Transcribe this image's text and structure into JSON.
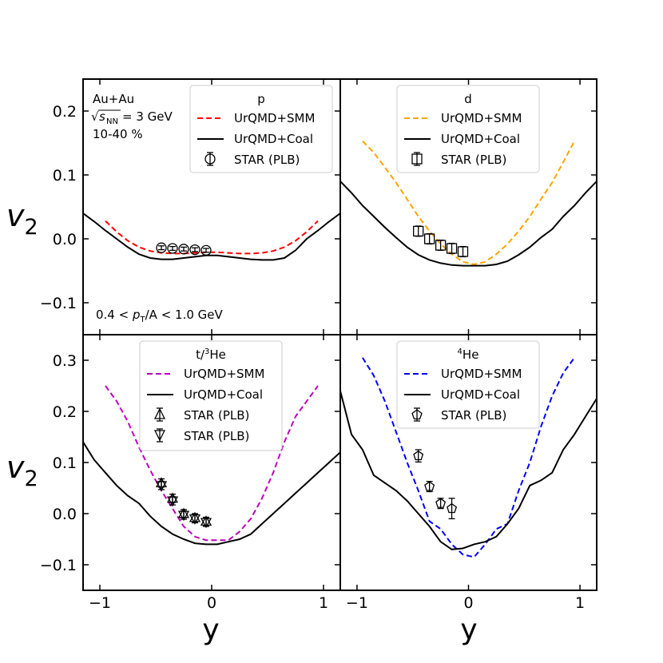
{
  "figure": {
    "x_axis_title": "y",
    "y_axis_title": "v",
    "y_axis_subscript": "2",
    "system_label": "Au+Au",
    "energy_label": "= 3 GeV",
    "sqrt_symbol": "√",
    "s_symbol": "s",
    "nn_subscript": "NN",
    "centrality_label": "10-40 %",
    "pt_cut": {
      "prefix": "0.4 < ",
      "p": "p",
      "t": "T",
      "suffix": "/A < 1.0 GeV"
    }
  },
  "colors": {
    "p": "#ff0000",
    "d": "#ffa500",
    "t": "#bf00bf",
    "he4": "#0000ff",
    "coal": "#000000"
  },
  "legend_labels": {
    "smm": "UrQMD+SMM",
    "coal": "UrQMD+Coal",
    "star": "STAR (PLB)"
  },
  "chart_data": [
    {
      "id": "p",
      "type": "line",
      "title": "p",
      "xlabel": "",
      "ylabel": "v2",
      "xlim": [
        -1.15,
        1.15
      ],
      "ylim": [
        -0.15,
        0.25
      ],
      "yticks": [
        -0.1,
        0.0,
        0.1,
        0.2
      ],
      "ytick_labels": [
        "−0.1",
        "0.0",
        "0.1",
        "0.2"
      ],
      "series": [
        {
          "name": "UrQMD+SMM",
          "style": "dashed",
          "color": "#ff0000",
          "x": [
            -0.95,
            -0.85,
            -0.75,
            -0.65,
            -0.55,
            -0.45,
            -0.35,
            -0.25,
            -0.15,
            -0.05,
            0.05,
            0.15,
            0.25,
            0.35,
            0.45,
            0.55,
            0.65,
            0.75,
            0.85,
            0.95
          ],
          "y": [
            0.028,
            0.011,
            -0.003,
            -0.013,
            -0.019,
            -0.022,
            -0.023,
            -0.023,
            -0.022,
            -0.021,
            -0.021,
            -0.022,
            -0.023,
            -0.023,
            -0.022,
            -0.019,
            -0.013,
            -0.003,
            0.011,
            0.028
          ]
        },
        {
          "name": "UrQMD+Coal",
          "style": "solid",
          "color": "#000000",
          "x": [
            -1.15,
            -1.05,
            -0.95,
            -0.85,
            -0.75,
            -0.65,
            -0.55,
            -0.45,
            -0.35,
            -0.25,
            -0.15,
            -0.05,
            0.05,
            0.15,
            0.25,
            0.35,
            0.45,
            0.55,
            0.65,
            0.75,
            0.85,
            0.95,
            1.05,
            1.15
          ],
          "y": [
            0.04,
            0.027,
            0.013,
            0.0,
            -0.013,
            -0.024,
            -0.03,
            -0.032,
            -0.032,
            -0.03,
            -0.028,
            -0.026,
            -0.026,
            -0.028,
            -0.03,
            -0.032,
            -0.033,
            -0.033,
            -0.03,
            -0.018,
            0.0,
            0.013,
            0.027,
            0.04
          ]
        },
        {
          "name": "STAR (PLB)",
          "style": "marker",
          "marker": "circle",
          "x": [
            -0.45,
            -0.35,
            -0.25,
            -0.15,
            -0.05
          ],
          "y": [
            -0.014,
            -0.015,
            -0.016,
            -0.017,
            -0.018
          ],
          "err": [
            0.003,
            0.003,
            0.003,
            0.003,
            0.003
          ]
        }
      ]
    },
    {
      "id": "d",
      "type": "line",
      "title": "d",
      "xlabel": "",
      "ylabel": "",
      "xlim": [
        -1.15,
        1.15
      ],
      "ylim": [
        -0.15,
        0.25
      ],
      "series": [
        {
          "name": "UrQMD+SMM",
          "style": "dashed",
          "color": "#ffa500",
          "x": [
            -0.95,
            -0.85,
            -0.75,
            -0.65,
            -0.55,
            -0.45,
            -0.35,
            -0.25,
            -0.15,
            -0.05,
            0.05,
            0.15,
            0.25,
            0.35,
            0.45,
            0.55,
            0.65,
            0.75,
            0.85,
            0.95
          ],
          "y": [
            0.153,
            0.135,
            0.112,
            0.088,
            0.062,
            0.035,
            0.012,
            -0.008,
            -0.024,
            -0.036,
            -0.04,
            -0.036,
            -0.024,
            -0.008,
            0.012,
            0.035,
            0.062,
            0.088,
            0.12,
            0.153
          ]
        },
        {
          "name": "UrQMD+Coal",
          "style": "solid",
          "color": "#000000",
          "x": [
            -1.15,
            -1.05,
            -0.95,
            -0.85,
            -0.75,
            -0.65,
            -0.55,
            -0.45,
            -0.35,
            -0.25,
            -0.15,
            -0.05,
            0.05,
            0.15,
            0.25,
            0.35,
            0.45,
            0.55,
            0.65,
            0.75,
            0.85,
            0.95,
            1.05,
            1.15
          ],
          "y": [
            0.09,
            0.072,
            0.052,
            0.035,
            0.018,
            0.002,
            -0.013,
            -0.025,
            -0.033,
            -0.038,
            -0.041,
            -0.042,
            -0.042,
            -0.042,
            -0.04,
            -0.035,
            -0.025,
            -0.013,
            0.002,
            0.015,
            0.035,
            0.052,
            0.072,
            0.09
          ]
        },
        {
          "name": "STAR (PLB)",
          "style": "marker",
          "marker": "square",
          "x": [
            -0.45,
            -0.35,
            -0.25,
            -0.15,
            -0.05
          ],
          "y": [
            0.012,
            0.0,
            -0.01,
            -0.015,
            -0.02
          ],
          "err": [
            0.008,
            0.008,
            0.008,
            0.008,
            0.008
          ]
        }
      ]
    },
    {
      "id": "t",
      "type": "line",
      "title_prefix": "t/",
      "title_sup": "3",
      "title_suffix": "He",
      "xlabel": "y",
      "ylabel": "v2",
      "xlim": [
        -1.15,
        1.15
      ],
      "ylim": [
        -0.15,
        0.35
      ],
      "yticks": [
        -0.1,
        0.0,
        0.1,
        0.2,
        0.3
      ],
      "ytick_labels": [
        "−0.1",
        "0.0",
        "0.1",
        "0.2",
        "0.3"
      ],
      "xticks": [
        -1,
        0,
        1
      ],
      "xtick_labels": [
        "−1",
        "0",
        "1"
      ],
      "series": [
        {
          "name": "UrQMD+SMM",
          "style": "dashed",
          "color": "#bf00bf",
          "x": [
            -0.95,
            -0.85,
            -0.75,
            -0.65,
            -0.55,
            -0.45,
            -0.35,
            -0.25,
            -0.15,
            -0.05,
            0.05,
            0.15,
            0.25,
            0.35,
            0.45,
            0.55,
            0.65,
            0.75,
            0.85,
            0.95
          ],
          "y": [
            0.25,
            0.22,
            0.18,
            0.13,
            0.085,
            0.045,
            0.01,
            -0.025,
            -0.045,
            -0.052,
            -0.052,
            -0.052,
            -0.035,
            -0.01,
            0.03,
            0.08,
            0.14,
            0.19,
            0.22,
            0.25
          ]
        },
        {
          "name": "UrQMD+Coal",
          "style": "solid",
          "color": "#000000",
          "x": [
            -1.15,
            -1.05,
            -0.95,
            -0.85,
            -0.75,
            -0.65,
            -0.55,
            -0.45,
            -0.35,
            -0.25,
            -0.15,
            -0.05,
            0.05,
            0.15,
            0.25,
            0.35,
            0.45,
            0.55,
            0.65,
            0.75,
            0.85,
            0.95,
            1.05,
            1.15
          ],
          "y": [
            0.14,
            0.105,
            0.08,
            0.055,
            0.035,
            0.02,
            -0.005,
            -0.025,
            -0.04,
            -0.05,
            -0.058,
            -0.06,
            -0.06,
            -0.055,
            -0.05,
            -0.04,
            -0.02,
            0.0,
            0.02,
            0.04,
            0.06,
            0.08,
            0.1,
            0.12
          ]
        },
        {
          "name": "STAR (PLB)",
          "style": "marker",
          "marker": "triangle-up",
          "x": [
            -0.45,
            -0.35,
            -0.25,
            -0.15,
            -0.05
          ],
          "y": [
            0.06,
            0.03,
            0.0,
            -0.008,
            -0.015
          ],
          "err": [
            0.008,
            0.008,
            0.008,
            0.008,
            0.008
          ]
        },
        {
          "name": "STAR (PLB)",
          "style": "marker",
          "marker": "triangle-down",
          "x": [
            -0.45,
            -0.35,
            -0.25,
            -0.15,
            -0.05
          ],
          "y": [
            0.055,
            0.025,
            -0.003,
            -0.01,
            -0.017
          ],
          "err": [
            0.008,
            0.008,
            0.008,
            0.008,
            0.008
          ]
        }
      ]
    },
    {
      "id": "he4",
      "type": "line",
      "title_prefix": "",
      "title_sup": "4",
      "title_suffix": "He",
      "xlabel": "y",
      "ylabel": "",
      "xlim": [
        -1.15,
        1.15
      ],
      "ylim": [
        -0.15,
        0.35
      ],
      "xticks": [
        -1,
        0,
        1
      ],
      "xtick_labels": [
        "−1",
        "0",
        "1"
      ],
      "series": [
        {
          "name": "UrQMD+SMM",
          "style": "dashed",
          "color": "#0000ff",
          "x": [
            -0.95,
            -0.85,
            -0.75,
            -0.65,
            -0.55,
            -0.45,
            -0.35,
            -0.25,
            -0.15,
            -0.05,
            0.05,
            0.15,
            0.25,
            0.35,
            0.45,
            0.55,
            0.65,
            0.75,
            0.85,
            0.95
          ],
          "y": [
            0.305,
            0.27,
            0.22,
            0.16,
            0.1,
            0.045,
            -0.015,
            -0.03,
            -0.06,
            -0.08,
            -0.085,
            -0.06,
            -0.03,
            -0.02,
            0.045,
            0.1,
            0.17,
            0.23,
            0.275,
            0.305
          ]
        },
        {
          "name": "UrQMD+Coal",
          "style": "solid",
          "color": "#000000",
          "x": [
            -1.15,
            -1.05,
            -0.95,
            -0.85,
            -0.75,
            -0.65,
            -0.55,
            -0.45,
            -0.35,
            -0.25,
            -0.15,
            -0.05,
            0.05,
            0.15,
            0.25,
            0.35,
            0.45,
            0.55,
            0.65,
            0.75,
            0.85,
            0.95,
            1.05,
            1.15
          ],
          "y": [
            0.24,
            0.155,
            0.125,
            0.075,
            0.06,
            0.045,
            0.025,
            0.0,
            -0.025,
            -0.055,
            -0.07,
            -0.068,
            -0.06,
            -0.055,
            -0.045,
            -0.02,
            0.01,
            0.055,
            0.065,
            0.08,
            0.125,
            0.155,
            0.19,
            0.225
          ]
        },
        {
          "name": "STAR (PLB)",
          "style": "marker",
          "marker": "pentagon",
          "x": [
            -0.45,
            -0.35,
            -0.25,
            -0.15
          ],
          "y": [
            0.113,
            0.053,
            0.02,
            0.01
          ],
          "err": [
            0.012,
            0.01,
            0.01,
            0.02
          ]
        }
      ]
    }
  ]
}
